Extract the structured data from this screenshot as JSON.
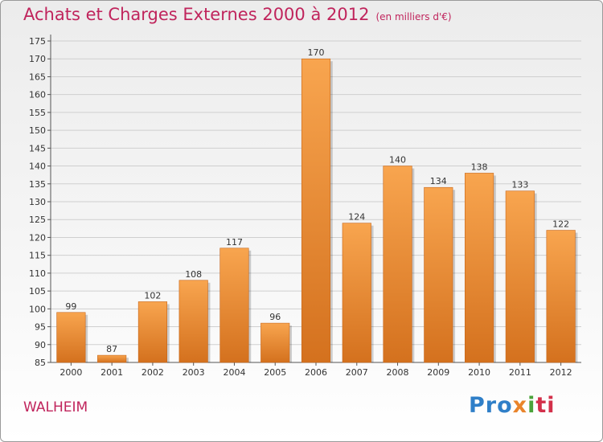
{
  "header": {
    "title": "Achats et Charges Externes 2000 à 2012",
    "unit": "(en milliers d'€)"
  },
  "footer": {
    "city": "WALHEIM",
    "logo_parts": [
      "Pro",
      "x",
      "i",
      "ti"
    ]
  },
  "colors": {
    "bar_light": "#f8a54f",
    "bar_dark": "#d4711e",
    "title": "#c0245c",
    "grid": "#cfcfcf"
  },
  "chart_data": {
    "type": "bar",
    "title": "Achats et Charges Externes 2000 à 2012",
    "subtitle": "(en milliers d'€)",
    "categories": [
      "2000",
      "2001",
      "2002",
      "2003",
      "2004",
      "2005",
      "2006",
      "2007",
      "2008",
      "2009",
      "2010",
      "2011",
      "2012"
    ],
    "values": [
      99,
      87,
      102,
      108,
      117,
      96,
      170,
      124,
      140,
      134,
      138,
      133,
      122
    ],
    "ylim": [
      85,
      175
    ],
    "yticks": [
      85,
      90,
      95,
      100,
      105,
      110,
      115,
      120,
      125,
      130,
      135,
      140,
      145,
      150,
      155,
      160,
      165,
      170,
      175
    ],
    "grid": true,
    "legend": "none"
  }
}
